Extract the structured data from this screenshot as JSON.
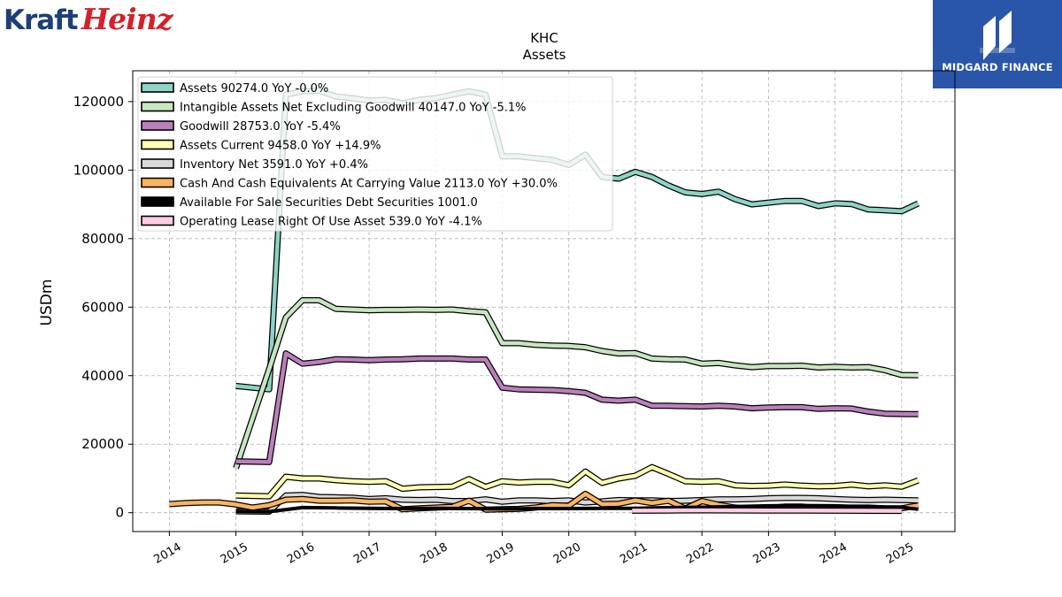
{
  "brand": {
    "part1": "Kraft",
    "part2": "Heinz"
  },
  "publisher": {
    "name": "MIDGARD FINANCE"
  },
  "colors": {
    "assets": "#8dd3c7",
    "intangible": "#c7e6c0",
    "goodwill": "#bb7fbc",
    "assets_current": "#ffffb3",
    "inventory": "#d9d9d9",
    "cash": "#fdb462",
    "afs": "#000000",
    "lease": "#fccde5",
    "badge": "#2a56a9"
  },
  "chart_data": {
    "type": "line",
    "title": "KHC",
    "subtitle": "Assets",
    "ylabel": "USDm",
    "xlabel": "",
    "xlim": [
      2013.45,
      2025.8
    ],
    "ylim": [
      -5500,
      129000
    ],
    "yticks": [
      0,
      20000,
      40000,
      60000,
      80000,
      100000,
      120000
    ],
    "xticks": [
      2014,
      2015,
      2016,
      2017,
      2018,
      2019,
      2020,
      2021,
      2022,
      2023,
      2024,
      2025
    ],
    "grid": true,
    "legend_position": "top-left",
    "series": [
      {
        "name": "Assets  90274.0 YoY -0.0%",
        "key": "assets",
        "points": [
          [
            2015.0,
            37000
          ],
          [
            2015.25,
            36500
          ],
          [
            2015.5,
            36000
          ],
          [
            2015.75,
            122000
          ],
          [
            2016.0,
            123000
          ],
          [
            2016.25,
            123200
          ],
          [
            2016.5,
            121500
          ],
          [
            2016.75,
            121000
          ],
          [
            2017.0,
            120300
          ],
          [
            2017.25,
            120500
          ],
          [
            2017.5,
            119500
          ],
          [
            2017.75,
            120500
          ],
          [
            2018.0,
            121000
          ],
          [
            2018.25,
            122000
          ],
          [
            2018.5,
            123000
          ],
          [
            2018.75,
            122000
          ],
          [
            2019.0,
            104000
          ],
          [
            2019.25,
            104000
          ],
          [
            2019.5,
            103500
          ],
          [
            2019.75,
            103000
          ],
          [
            2020.0,
            101500
          ],
          [
            2020.25,
            104500
          ],
          [
            2020.5,
            98000
          ],
          [
            2020.75,
            97500
          ],
          [
            2021.0,
            99500
          ],
          [
            2021.25,
            98000
          ],
          [
            2021.5,
            95500
          ],
          [
            2021.75,
            93500
          ],
          [
            2022.0,
            93000
          ],
          [
            2022.25,
            93700
          ],
          [
            2022.5,
            91500
          ],
          [
            2022.75,
            90000
          ],
          [
            2023.0,
            90500
          ],
          [
            2023.25,
            91000
          ],
          [
            2023.5,
            91000
          ],
          [
            2023.75,
            89500
          ],
          [
            2024.0,
            90300
          ],
          [
            2024.25,
            90100
          ],
          [
            2024.5,
            88500
          ],
          [
            2024.75,
            88300
          ],
          [
            2025.0,
            88000
          ],
          [
            2025.25,
            90274
          ]
        ]
      },
      {
        "name": "Intangible Assets Net Excluding Goodwill  40147.0 YoY -5.1%",
        "key": "intangible",
        "points": [
          [
            2015.0,
            13000
          ],
          [
            2015.5,
            42000
          ],
          [
            2015.75,
            57000
          ],
          [
            2016.0,
            62000
          ],
          [
            2016.25,
            62000
          ],
          [
            2016.5,
            59500
          ],
          [
            2016.75,
            59300
          ],
          [
            2017.0,
            59100
          ],
          [
            2017.25,
            59200
          ],
          [
            2017.5,
            59200
          ],
          [
            2017.75,
            59300
          ],
          [
            2018.0,
            59200
          ],
          [
            2018.25,
            59300
          ],
          [
            2018.5,
            58800
          ],
          [
            2018.75,
            58500
          ],
          [
            2019.0,
            49500
          ],
          [
            2019.25,
            49500
          ],
          [
            2019.5,
            49000
          ],
          [
            2019.75,
            48800
          ],
          [
            2020.0,
            48700
          ],
          [
            2020.25,
            48300
          ],
          [
            2020.5,
            47200
          ],
          [
            2020.75,
            46500
          ],
          [
            2021.0,
            46600
          ],
          [
            2021.25,
            45000
          ],
          [
            2021.5,
            44800
          ],
          [
            2021.75,
            44700
          ],
          [
            2022.0,
            43500
          ],
          [
            2022.25,
            43700
          ],
          [
            2022.5,
            43000
          ],
          [
            2022.75,
            42500
          ],
          [
            2023.0,
            42800
          ],
          [
            2023.25,
            42800
          ],
          [
            2023.5,
            42900
          ],
          [
            2023.75,
            42400
          ],
          [
            2024.0,
            42600
          ],
          [
            2024.25,
            42400
          ],
          [
            2024.5,
            42500
          ],
          [
            2024.75,
            41600
          ],
          [
            2025.0,
            40200
          ],
          [
            2025.25,
            40147
          ]
        ]
      },
      {
        "name": "Goodwill  28753.0 YoY -5.4%",
        "key": "goodwill",
        "points": [
          [
            2015.0,
            15000
          ],
          [
            2015.5,
            14800
          ],
          [
            2015.75,
            46500
          ],
          [
            2016.0,
            43500
          ],
          [
            2016.25,
            44000
          ],
          [
            2016.5,
            44800
          ],
          [
            2016.75,
            44700
          ],
          [
            2017.0,
            44500
          ],
          [
            2017.25,
            44700
          ],
          [
            2017.5,
            44800
          ],
          [
            2017.75,
            45000
          ],
          [
            2018.0,
            45000
          ],
          [
            2018.25,
            45000
          ],
          [
            2018.5,
            44700
          ],
          [
            2018.75,
            44700
          ],
          [
            2019.0,
            36500
          ],
          [
            2019.25,
            36000
          ],
          [
            2019.5,
            35900
          ],
          [
            2019.75,
            35800
          ],
          [
            2020.0,
            35500
          ],
          [
            2020.25,
            35000
          ],
          [
            2020.5,
            33000
          ],
          [
            2020.75,
            32700
          ],
          [
            2021.0,
            33000
          ],
          [
            2021.25,
            31200
          ],
          [
            2021.5,
            31200
          ],
          [
            2021.75,
            31100
          ],
          [
            2022.0,
            31000
          ],
          [
            2022.25,
            31200
          ],
          [
            2022.5,
            31000
          ],
          [
            2022.75,
            30500
          ],
          [
            2023.0,
            30700
          ],
          [
            2023.25,
            30800
          ],
          [
            2023.5,
            30800
          ],
          [
            2023.75,
            30300
          ],
          [
            2024.0,
            30500
          ],
          [
            2024.25,
            30400
          ],
          [
            2024.5,
            29500
          ],
          [
            2024.75,
            28900
          ],
          [
            2025.0,
            28800
          ],
          [
            2025.25,
            28753
          ]
        ]
      },
      {
        "name": "Assets Current  9458.0 YoY +14.9%",
        "key": "assets_current",
        "points": [
          [
            2015.0,
            5000
          ],
          [
            2015.5,
            4800
          ],
          [
            2015.75,
            10500
          ],
          [
            2016.0,
            10000
          ],
          [
            2016.25,
            10000
          ],
          [
            2016.5,
            9500
          ],
          [
            2016.75,
            9200
          ],
          [
            2017.0,
            9000
          ],
          [
            2017.25,
            9200
          ],
          [
            2017.5,
            7000
          ],
          [
            2017.75,
            7400
          ],
          [
            2018.0,
            7500
          ],
          [
            2018.25,
            7600
          ],
          [
            2018.5,
            9800
          ],
          [
            2018.75,
            7500
          ],
          [
            2019.0,
            9200
          ],
          [
            2019.25,
            8800
          ],
          [
            2019.5,
            9000
          ],
          [
            2019.75,
            9000
          ],
          [
            2020.0,
            8000
          ],
          [
            2020.25,
            12000
          ],
          [
            2020.5,
            8700
          ],
          [
            2020.75,
            10000
          ],
          [
            2021.0,
            10800
          ],
          [
            2021.25,
            13300
          ],
          [
            2021.5,
            11300
          ],
          [
            2021.75,
            9200
          ],
          [
            2022.0,
            9000
          ],
          [
            2022.25,
            9200
          ],
          [
            2022.5,
            8000
          ],
          [
            2022.75,
            7800
          ],
          [
            2023.0,
            7900
          ],
          [
            2023.25,
            8200
          ],
          [
            2023.5,
            7900
          ],
          [
            2023.75,
            7700
          ],
          [
            2024.0,
            7800
          ],
          [
            2024.25,
            8200
          ],
          [
            2024.5,
            7700
          ],
          [
            2024.75,
            8000
          ],
          [
            2025.0,
            7600
          ],
          [
            2025.25,
            9458
          ]
        ]
      },
      {
        "name": "Inventory Net  3591.0 YoY +0.4%",
        "key": "inventory",
        "points": [
          [
            2015.0,
            400
          ],
          [
            2015.5,
            300
          ],
          [
            2015.75,
            5000
          ],
          [
            2016.0,
            5200
          ],
          [
            2016.25,
            4600
          ],
          [
            2016.5,
            4500
          ],
          [
            2016.75,
            4400
          ],
          [
            2017.0,
            4000
          ],
          [
            2017.25,
            4200
          ],
          [
            2017.5,
            3800
          ],
          [
            2017.75,
            3700
          ],
          [
            2018.0,
            3800
          ],
          [
            2018.25,
            3400
          ],
          [
            2018.5,
            3400
          ],
          [
            2018.75,
            3900
          ],
          [
            2019.0,
            3200
          ],
          [
            2019.25,
            3600
          ],
          [
            2019.5,
            3600
          ],
          [
            2019.75,
            3400
          ],
          [
            2020.0,
            3600
          ],
          [
            2020.25,
            3000
          ],
          [
            2020.5,
            3300
          ],
          [
            2020.75,
            3700
          ],
          [
            2021.0,
            3600
          ],
          [
            2021.25,
            3600
          ],
          [
            2021.5,
            3400
          ],
          [
            2021.75,
            3500
          ],
          [
            2022.0,
            3700
          ],
          [
            2022.25,
            3900
          ],
          [
            2022.5,
            3900
          ],
          [
            2022.75,
            4000
          ],
          [
            2023.0,
            4200
          ],
          [
            2023.25,
            4300
          ],
          [
            2023.5,
            4300
          ],
          [
            2023.75,
            4200
          ],
          [
            2024.0,
            4000
          ],
          [
            2024.25,
            3800
          ],
          [
            2024.5,
            3700
          ],
          [
            2024.75,
            3800
          ],
          [
            2025.0,
            3700
          ],
          [
            2025.25,
            3591
          ]
        ]
      },
      {
        "name": "Cash And Cash Equivalents At Carrying Value  2113.0 YoY +30.0%",
        "key": "cash",
        "points": [
          [
            2014.0,
            2500
          ],
          [
            2014.25,
            2800
          ],
          [
            2014.5,
            3000
          ],
          [
            2014.75,
            3000
          ],
          [
            2015.0,
            2400
          ],
          [
            2015.25,
            1500
          ],
          [
            2015.5,
            2200
          ],
          [
            2015.75,
            3800
          ],
          [
            2016.0,
            4000
          ],
          [
            2016.25,
            3500
          ],
          [
            2016.5,
            3500
          ],
          [
            2016.75,
            3600
          ],
          [
            2017.0,
            3200
          ],
          [
            2017.25,
            3300
          ],
          [
            2017.5,
            1000
          ],
          [
            2017.75,
            1300
          ],
          [
            2018.0,
            1500
          ],
          [
            2018.25,
            1700
          ],
          [
            2018.5,
            3500
          ],
          [
            2018.75,
            900
          ],
          [
            2019.0,
            1000
          ],
          [
            2019.25,
            1100
          ],
          [
            2019.5,
            1500
          ],
          [
            2019.75,
            2200
          ],
          [
            2020.0,
            2000
          ],
          [
            2020.25,
            5500
          ],
          [
            2020.5,
            2500
          ],
          [
            2020.75,
            2600
          ],
          [
            2021.0,
            3600
          ],
          [
            2021.25,
            2800
          ],
          [
            2021.5,
            3500
          ],
          [
            2021.75,
            1200
          ],
          [
            2022.0,
            3400
          ],
          [
            2022.25,
            2300
          ],
          [
            2022.5,
            1500
          ],
          [
            2022.75,
            1100
          ],
          [
            2023.0,
            1400
          ],
          [
            2023.25,
            1800
          ],
          [
            2023.5,
            1800
          ],
          [
            2023.75,
            1300
          ],
          [
            2024.0,
            1300
          ],
          [
            2024.25,
            1500
          ],
          [
            2024.5,
            1500
          ],
          [
            2024.75,
            1300
          ],
          [
            2025.0,
            1300
          ],
          [
            2025.25,
            2113
          ]
        ]
      },
      {
        "name": "Available For Sale Securities Debt Securities  1001.0",
        "key": "afs",
        "points": [
          [
            2015.0,
            400
          ],
          [
            2015.5,
            300
          ],
          [
            2016.0,
            1500
          ],
          [
            2016.5,
            1400
          ],
          [
            2017.0,
            1300
          ],
          [
            2017.5,
            1200
          ],
          [
            2018.0,
            1300
          ],
          [
            2018.5,
            1200
          ],
          [
            2019.0,
            1100
          ],
          [
            2019.5,
            1200
          ],
          [
            2020.0,
            1200
          ],
          [
            2020.5,
            1300
          ],
          [
            2021.0,
            1300
          ],
          [
            2021.5,
            1500
          ],
          [
            2022.0,
            1600
          ],
          [
            2022.5,
            1800
          ],
          [
            2023.0,
            2000
          ],
          [
            2023.5,
            2100
          ],
          [
            2024.0,
            2000
          ],
          [
            2024.5,
            1700
          ],
          [
            2025.0,
            1600
          ],
          [
            2025.25,
            1001
          ]
        ]
      },
      {
        "name": "Operating Lease Right Of Use Asset  539.0 YoY -4.1%",
        "key": "lease",
        "points": [
          [
            2020.95,
            600
          ],
          [
            2021.5,
            650
          ],
          [
            2022.0,
            700
          ],
          [
            2022.5,
            680
          ],
          [
            2023.0,
            650
          ],
          [
            2023.5,
            620
          ],
          [
            2024.0,
            600
          ],
          [
            2024.5,
            570
          ],
          [
            2025.0,
            539
          ]
        ]
      }
    ]
  }
}
